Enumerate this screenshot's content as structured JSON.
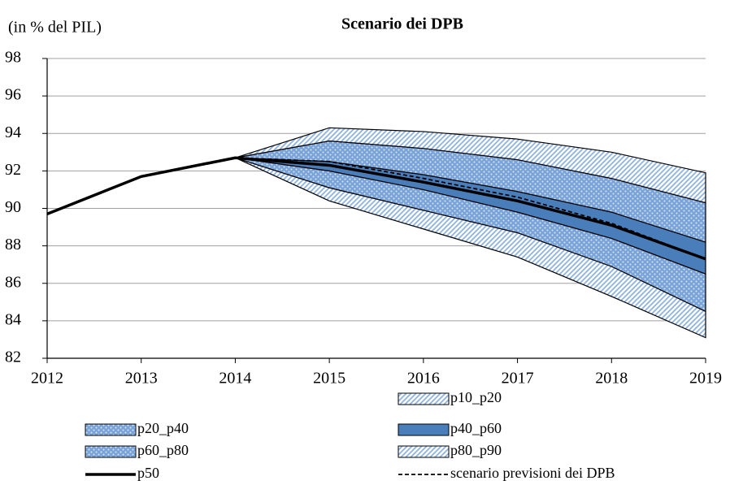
{
  "chart_data": {
    "type": "fan",
    "title": "Scenario dei DPB",
    "y_label": "(in % del PIL)",
    "x": [
      2012,
      2013,
      2014,
      2015,
      2016,
      2017,
      2018,
      2019
    ],
    "xlim": [
      2012,
      2019
    ],
    "xticks": [
      2012,
      2013,
      2014,
      2015,
      2016,
      2017,
      2018,
      2019
    ],
    "ylim": [
      82,
      98
    ],
    "yticks": [
      82,
      84,
      86,
      88,
      90,
      92,
      94,
      96,
      98
    ],
    "grid": true,
    "series": [
      {
        "name": "p10_p20",
        "kind": "band",
        "pattern": "hatch",
        "color": "#8fb3e0",
        "low": [
          null,
          null,
          92.7,
          90.4,
          88.9,
          87.4,
          85.3,
          83.1
        ],
        "high": [
          null,
          null,
          92.7,
          91.1,
          89.9,
          88.7,
          86.9,
          84.5
        ]
      },
      {
        "name": "p20_p40",
        "kind": "band",
        "pattern": "cross",
        "color": "#7aa3da",
        "low": [
          null,
          null,
          92.7,
          91.1,
          89.9,
          88.7,
          86.9,
          84.5
        ],
        "high": [
          null,
          null,
          92.7,
          92.0,
          91.0,
          89.8,
          88.4,
          86.5
        ]
      },
      {
        "name": "p40_p60",
        "kind": "band",
        "pattern": "solid",
        "color": "#4a7ebb",
        "low": [
          null,
          null,
          92.7,
          92.0,
          91.0,
          89.8,
          88.4,
          86.5
        ],
        "high": [
          null,
          null,
          92.7,
          92.5,
          91.8,
          90.9,
          89.8,
          88.2
        ]
      },
      {
        "name": "p60_p80",
        "kind": "band",
        "pattern": "cross",
        "color": "#7aa3da",
        "low": [
          null,
          null,
          92.7,
          92.5,
          91.8,
          90.9,
          89.8,
          88.2
        ],
        "high": [
          null,
          null,
          92.7,
          93.6,
          93.2,
          92.6,
          91.6,
          90.3
        ]
      },
      {
        "name": "p80_p90",
        "kind": "band",
        "pattern": "hatch",
        "color": "#8fb3e0",
        "low": [
          null,
          null,
          92.7,
          93.6,
          93.2,
          92.6,
          91.6,
          90.3
        ],
        "high": [
          null,
          null,
          92.7,
          94.3,
          94.1,
          93.7,
          93.0,
          91.9
        ]
      },
      {
        "name": "p50",
        "kind": "line",
        "dashed": false,
        "color": "#000000",
        "values": [
          89.7,
          91.7,
          92.7,
          92.3,
          91.4,
          90.4,
          89.1,
          87.3
        ]
      },
      {
        "name": "scenario previsioni dei DPB",
        "kind": "line",
        "dashed": true,
        "color": "#000000",
        "values": [
          null,
          null,
          92.7,
          92.5,
          91.6,
          90.6,
          89.2,
          87.3
        ]
      }
    ]
  }
}
